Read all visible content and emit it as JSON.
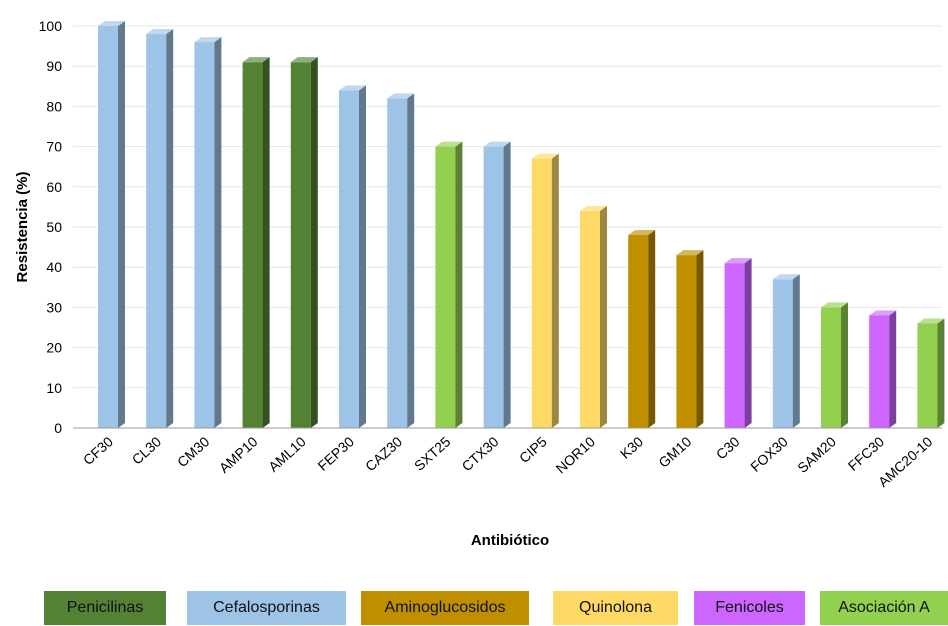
{
  "chart_data": {
    "type": "bar",
    "title": "",
    "xlabel": "Antibiótico",
    "ylabel": "Resistencia  (%)",
    "ylim": [
      0,
      100
    ],
    "yticks": [
      0,
      10,
      20,
      30,
      40,
      50,
      60,
      70,
      80,
      90,
      100
    ],
    "grid": "horizontal",
    "legend_placement": "bottom",
    "categories": [
      "CF30",
      "CL30",
      "CM30",
      "AMP10",
      "AML10",
      "FEP30",
      "CAZ30",
      "SXT25",
      "CTX30",
      "CIP5",
      "NOR10",
      "K30",
      "GM10",
      "C30",
      "FOX30",
      "SAM20",
      "FFC30",
      "AMC20-10"
    ],
    "values": [
      100,
      98,
      96,
      91,
      91,
      84,
      82,
      70,
      70,
      67,
      54,
      48,
      43,
      41,
      37,
      30,
      28,
      26
    ],
    "groups": [
      "Cefalosporinas",
      "Cefalosporinas",
      "Cefalosporinas",
      "Penicilinas",
      "Penicilinas",
      "Cefalosporinas",
      "Cefalosporinas",
      "Asociación A",
      "Cefalosporinas",
      "Quinolona",
      "Quinolona",
      "Aminoglucosidos",
      "Aminoglucosidos",
      "Fenicoles",
      "Cefalosporinas",
      "Asociación A",
      "Fenicoles",
      "Asociación A"
    ],
    "legend": [
      {
        "name": "Penicilinas",
        "color": "#548235"
      },
      {
        "name": "Cefalosporinas",
        "color": "#9dc3e6"
      },
      {
        "name": "Aminoglucosidos",
        "color": "#bf8f00"
      },
      {
        "name": "Quinolona",
        "color": "#ffd966"
      },
      {
        "name": "Fenicoles",
        "color": "#cc66ff"
      },
      {
        "name": "Asociación A",
        "color": "#92d050"
      }
    ]
  }
}
